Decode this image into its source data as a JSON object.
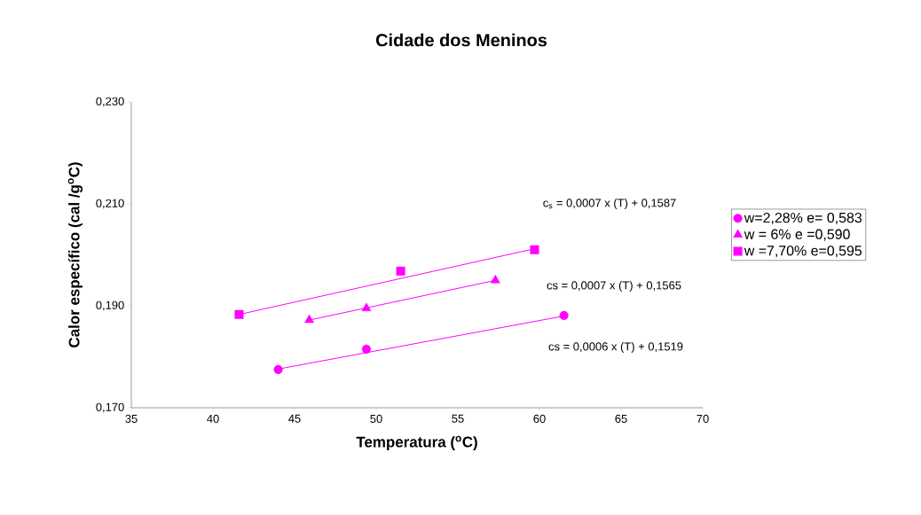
{
  "chart_data": {
    "type": "scatter",
    "title": "Cidade dos Meninos",
    "xlabel": "Temperatura ($^{o}$C)",
    "ylabel": "Calor específico (cal /g$^{o}$C)",
    "xlim": [
      35,
      70
    ],
    "xticks": [
      35,
      40,
      45,
      50,
      55,
      60,
      65,
      70
    ],
    "ylim": [
      0.17,
      0.23
    ],
    "yticks": [
      {
        "value": 0.17,
        "label": "0,170"
      },
      {
        "value": 0.19,
        "label": "0,190"
      },
      {
        "value": 0.21,
        "label": "0,210"
      },
      {
        "value": 0.23,
        "label": "0,230"
      }
    ],
    "grid": false,
    "legend": "right",
    "series": [
      {
        "name": "w=2,28% e= 0,583",
        "color": "#ff00ff",
        "marker": "circle",
        "x": [
          44.0,
          49.4,
          61.5
        ],
        "values": [
          0.1775,
          0.1815,
          0.1881
        ]
      },
      {
        "name": "w = 6% e =0,590",
        "color": "#ff00ff",
        "marker": "triangle",
        "x": [
          45.9,
          49.4,
          57.3
        ],
        "values": [
          0.1872,
          0.1895,
          0.195
        ]
      },
      {
        "name": "w =7,70%  e=0,595",
        "color": "#ff00ff",
        "marker": "square",
        "x": [
          41.6,
          51.5,
          59.7
        ],
        "values": [
          0.1883,
          0.1968,
          0.201
        ]
      },
      {
        "type": "line",
        "color": "#ff00ff",
        "x": [
          44.0,
          61.5
        ],
        "values": [
          0.1776,
          0.188
        ]
      },
      {
        "type": "line",
        "color": "#ff00ff",
        "x": [
          45.9,
          57.3
        ],
        "values": [
          0.1872,
          0.195
        ]
      },
      {
        "type": "line",
        "color": "#ff00ff",
        "x": [
          41.6,
          59.7
        ],
        "values": [
          0.1883,
          0.2012
        ]
      }
    ],
    "annotations": [
      "c$_{s}$ = 0,0007 x (T) + 0,1587",
      "cs = 0,0007 x (T) + 0,1565",
      "cs = 0,0006 x (T) + 0,1519"
    ]
  }
}
